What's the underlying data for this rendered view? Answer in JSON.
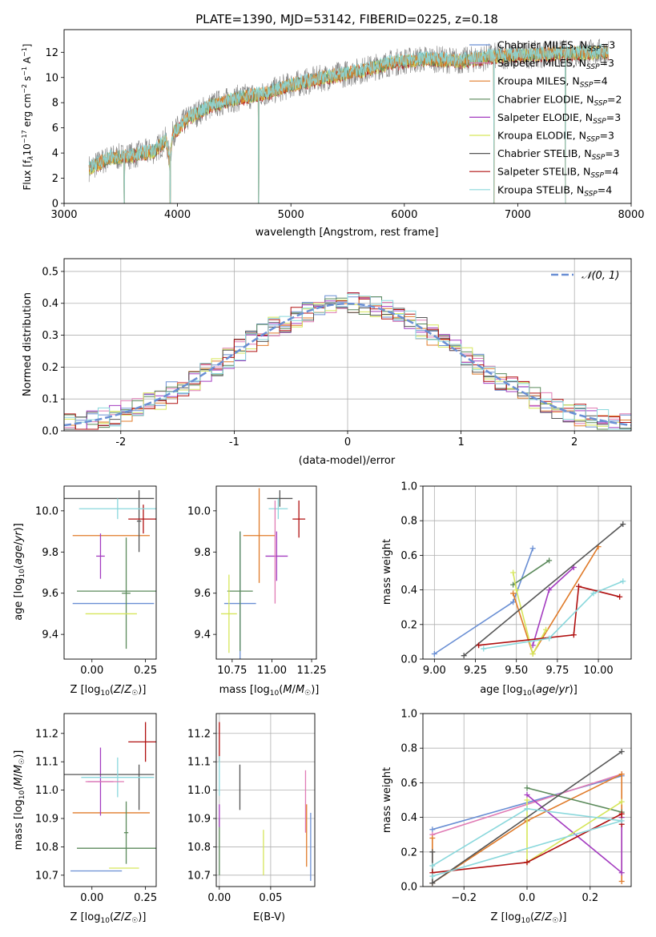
{
  "colors": {
    "chabrier_miles": "#6a8fd4",
    "salpeter_miles": "#e07bb5",
    "kroupa_miles": "#e07b2a",
    "chabrier_elodie": "#5b8a5b",
    "salpeter_elodie": "#a43cc0",
    "kroupa_elodie": "#d6e65a",
    "chabrier_stelib": "#555555",
    "salpeter_stelib": "#b01010",
    "kroupa_stelib": "#8ad8dc",
    "spectrum": "#808080"
  },
  "chart_data": [
    {
      "id": "spectrum",
      "type": "line",
      "title": "PLATE=1390, MJD=53142, FIBERID=0225, z=0.18",
      "xlabel": "wavelength [Angstrom, rest frame]",
      "ylabel_parts": [
        "Flux [f",
        "λ",
        "10",
        "−17",
        " erg cm",
        "−2",
        " s",
        "−1",
        " A",
        "−1",
        "]"
      ],
      "xlim": [
        3000,
        8000
      ],
      "ylim": [
        0,
        13.8
      ],
      "xticks": [
        3000,
        4000,
        5000,
        6000,
        7000,
        8000
      ],
      "yticks": [
        0,
        2,
        4,
        6,
        8,
        10,
        12
      ],
      "legend_position": "right",
      "legend": [
        {
          "name": "Chabrier MILES, N",
          "sub": "SSP",
          "suffix": "=3",
          "color": "chabrier_miles"
        },
        {
          "name": "Salpeter MILES, N",
          "sub": "SSP",
          "suffix": "=3",
          "color": "salpeter_miles"
        },
        {
          "name": "Kroupa MILES, N",
          "sub": "SSP",
          "suffix": "=4",
          "color": "kroupa_miles"
        },
        {
          "name": "Chabrier ELODIE, N",
          "sub": "SSP",
          "suffix": "=2",
          "color": "chabrier_elodie"
        },
        {
          "name": "Salpeter ELODIE, N",
          "sub": "SSP",
          "suffix": "=3",
          "color": "salpeter_elodie"
        },
        {
          "name": "Kroupa ELODIE, N",
          "sub": "SSP",
          "suffix": "=3",
          "color": "kroupa_elodie"
        },
        {
          "name": "Chabrier STELIB, N",
          "sub": "SSP",
          "suffix": "=3",
          "color": "chabrier_stelib"
        },
        {
          "name": "Salpeter STELIB, N",
          "sub": "SSP",
          "suffix": "=4",
          "color": "salpeter_stelib"
        },
        {
          "name": "Kroupa STELIB, N",
          "sub": "SSP",
          "suffix": "=4",
          "color": "kroupa_stelib"
        }
      ],
      "continuum": {
        "x": [
          3220,
          3400,
          3600,
          3800,
          3950,
          4100,
          4300,
          4500,
          4800,
          5000,
          5300,
          5600,
          5900,
          6200,
          6500,
          6800,
          7100,
          7400,
          7700,
          7800
        ],
        "y": [
          2.8,
          3.6,
          3.8,
          4.2,
          5.5,
          6.8,
          7.8,
          8.3,
          8.8,
          9.4,
          10.0,
          10.5,
          11.2,
          11.5,
          11.3,
          11.7,
          11.8,
          11.9,
          12.0,
          12.0
        ]
      },
      "spikes_down": [
        {
          "x": 3530,
          "y": 0
        },
        {
          "x": 3935,
          "y": 0
        },
        {
          "x": 4715,
          "y": 0
        },
        {
          "x": 6790,
          "y": 0
        },
        {
          "x": 7420,
          "y": 0
        }
      ]
    },
    {
      "id": "residuals",
      "type": "histogram",
      "xlabel": "(data-model)/error",
      "ylabel": "Normed distribution",
      "xlim": [
        -2.5,
        2.5
      ],
      "ylim": [
        0,
        0.54
      ],
      "xticks": [
        -2,
        -1,
        0,
        1,
        2
      ],
      "yticks": [
        0.0,
        0.1,
        0.2,
        0.3,
        0.4,
        0.5
      ],
      "grid": true,
      "bin_width": 0.1,
      "legend": [
        {
          "name": "𝒩(0, 1)",
          "color": "chabrier_miles",
          "style": "dashed"
        }
      ],
      "curve": "normal(0,1)"
    },
    {
      "id": "age_vs_Z",
      "type": "errorbar",
      "xlabel": "Z [log₁₀(Z/Z☉)]",
      "ylabel": "age  [log₁₀(age/yr)]",
      "xlim": [
        -0.13,
        0.3
      ],
      "ylim": [
        9.28,
        10.12
      ],
      "xticks": [
        0.0,
        0.25
      ],
      "xtick_labels": [
        "0.00",
        "0.25"
      ],
      "yticks": [
        9.4,
        9.6,
        9.8,
        10.0
      ],
      "points": [
        {
          "series": "chabrier_miles",
          "x": 0.1,
          "xerr": 0.19,
          "y": 9.55,
          "yerr": 0.0
        },
        {
          "series": "salpeter_miles",
          "x": 0.17,
          "xerr": 0.0,
          "y": 9.55,
          "yerr": 0.0
        },
        {
          "series": "kroupa_miles",
          "x": 0.09,
          "xerr": 0.18,
          "y": 9.88,
          "yerr": 0.0
        },
        {
          "series": "chabrier_elodie",
          "x": 0.16,
          "xerr": 0.02,
          "y": 9.6,
          "yerr": 0.27
        },
        {
          "series": "chabrier_elodie",
          "x": 0.17,
          "xerr": 0.24,
          "y": 9.61,
          "yerr": 0.0
        },
        {
          "series": "salpeter_elodie",
          "x": 0.04,
          "xerr": 0.02,
          "y": 9.78,
          "yerr": 0.11
        },
        {
          "series": "kroupa_elodie",
          "x": 0.09,
          "xerr": 0.12,
          "y": 9.5,
          "yerr": 0.0
        },
        {
          "series": "chabrier_stelib",
          "x": 0.07,
          "xerr": 0.22,
          "y": 10.06,
          "yerr": 0.0
        },
        {
          "series": "chabrier_stelib",
          "x": 0.22,
          "xerr": 0.01,
          "y": 9.95,
          "yerr": 0.15
        },
        {
          "series": "salpeter_stelib",
          "x": 0.24,
          "xerr": 0.07,
          "y": 9.96,
          "yerr": 0.07
        },
        {
          "series": "kroupa_stelib",
          "x": 0.12,
          "xerr": 0.18,
          "y": 10.01,
          "yerr": 0.05
        },
        {
          "series": "kroupa_elodie",
          "x": 0.15,
          "xerr": 0.0,
          "y": 9.5,
          "yerr": 0.0
        }
      ]
    },
    {
      "id": "age_vs_mass",
      "type": "errorbar",
      "xlabel": "mass [log₁₀(M/M☉)]",
      "xlim": [
        10.65,
        11.28
      ],
      "ylim": [
        9.28,
        10.12
      ],
      "xticks": [
        10.75,
        11.0,
        11.25
      ],
      "xtick_labels": [
        "10.75",
        "11.00",
        "11.25"
      ],
      "yticks": [
        9.4,
        9.6,
        9.8,
        10.0
      ],
      "points": [
        {
          "series": "chabrier_miles",
          "x": 10.8,
          "xerr": 0.1,
          "y": 9.55,
          "yerr": 0.35
        },
        {
          "series": "kroupa_miles",
          "x": 10.92,
          "xerr": 0.1,
          "y": 9.88,
          "yerr": 0.23
        },
        {
          "series": "chabrier_elodie",
          "x": 10.8,
          "xerr": 0.08,
          "y": 9.61,
          "yerr": 0.29
        },
        {
          "series": "salpeter_elodie",
          "x": 11.03,
          "xerr": 0.07,
          "y": 9.78,
          "yerr": 0.12
        },
        {
          "series": "kroupa_elodie",
          "x": 10.73,
          "xerr": 0.05,
          "y": 9.5,
          "yerr": 0.19
        },
        {
          "series": "chabrier_stelib",
          "x": 11.05,
          "xerr": 0.08,
          "y": 10.06,
          "yerr": 0.04
        },
        {
          "series": "salpeter_stelib",
          "x": 11.17,
          "xerr": 0.04,
          "y": 9.96,
          "yerr": 0.09
        },
        {
          "series": "kroupa_stelib",
          "x": 11.04,
          "xerr": 0.06,
          "y": 10.01,
          "yerr": 0.05
        },
        {
          "series": "salpeter_miles",
          "x": 11.02,
          "xerr": 0.0,
          "y": 9.8,
          "yerr": 0.25
        }
      ]
    },
    {
      "id": "weight_vs_age",
      "type": "line",
      "xlabel": "age  [log₁₀(age/yr)]",
      "ylabel": "mass weight",
      "xlim": [
        8.93,
        10.2
      ],
      "ylim": [
        0,
        1.0
      ],
      "xticks": [
        9.0,
        9.25,
        9.5,
        9.75,
        10.0
      ],
      "xtick_labels": [
        "9.00",
        "9.25",
        "9.50",
        "9.75",
        "10.00"
      ],
      "yticks": [
        0.0,
        0.2,
        0.4,
        0.6,
        0.8,
        1.0
      ],
      "grid": true,
      "series": [
        {
          "color": "chabrier_miles",
          "x": [
            9.0,
            9.48,
            9.6
          ],
          "y": [
            0.03,
            0.33,
            0.64
          ]
        },
        {
          "color": "kroupa_miles",
          "x": [
            9.48,
            9.6,
            10.0
          ],
          "y": [
            0.38,
            0.03,
            0.65
          ]
        },
        {
          "color": "chabrier_elodie",
          "x": [
            9.48,
            9.7
          ],
          "y": [
            0.43,
            0.57
          ]
        },
        {
          "color": "salpeter_elodie",
          "x": [
            9.6,
            9.7,
            9.85
          ],
          "y": [
            0.08,
            0.4,
            0.53
          ]
        },
        {
          "color": "kroupa_elodie",
          "x": [
            9.48,
            9.5,
            9.6,
            9.68
          ],
          "y": [
            0.5,
            0.4,
            0.03,
            0.17
          ]
        },
        {
          "color": "chabrier_stelib",
          "x": [
            9.18,
            10.15
          ],
          "y": [
            0.02,
            0.78
          ]
        },
        {
          "color": "salpeter_stelib",
          "x": [
            9.27,
            9.85,
            9.88,
            10.13
          ],
          "y": [
            0.08,
            0.14,
            0.42,
            0.36
          ]
        },
        {
          "color": "kroupa_stelib",
          "x": [
            9.3,
            9.7,
            9.97,
            10.15
          ],
          "y": [
            0.06,
            0.12,
            0.38,
            0.45
          ]
        }
      ]
    },
    {
      "id": "mass_vs_Z",
      "type": "errorbar",
      "xlabel": "Z [log₁₀(Z/Z☉)]",
      "ylabel": "mass [log₁₀(M/M☉)]",
      "xlim": [
        -0.13,
        0.3
      ],
      "ylim": [
        10.66,
        11.27
      ],
      "xticks": [
        0.0,
        0.25
      ],
      "xtick_labels": [
        "0.00",
        "0.25"
      ],
      "yticks": [
        10.7,
        10.8,
        10.9,
        11.0,
        11.1,
        11.2
      ],
      "points": [
        {
          "series": "chabrier_miles",
          "x": 0.02,
          "xerr": 0.12,
          "y": 10.715,
          "yerr": 0.0
        },
        {
          "series": "kroupa_miles",
          "x": 0.09,
          "xerr": 0.18,
          "y": 10.92,
          "yerr": 0.0
        },
        {
          "series": "chabrier_elodie",
          "x": 0.17,
          "xerr": 0.24,
          "y": 10.795,
          "yerr": 0.0
        },
        {
          "series": "chabrier_elodie",
          "x": 0.16,
          "xerr": 0.01,
          "y": 10.85,
          "yerr": 0.11
        },
        {
          "series": "salpeter_elodie",
          "x": 0.04,
          "xerr": 0.06,
          "y": 11.03,
          "yerr": 0.12
        },
        {
          "series": "kroupa_elodie",
          "x": 0.15,
          "xerr": 0.07,
          "y": 10.725,
          "yerr": 0.0
        },
        {
          "series": "chabrier_stelib",
          "x": 0.07,
          "xerr": 0.22,
          "y": 11.055,
          "yerr": 0.0
        },
        {
          "series": "chabrier_stelib",
          "x": 0.22,
          "xerr": 0.0,
          "y": 11.01,
          "yerr": 0.08
        },
        {
          "series": "salpeter_stelib",
          "x": 0.25,
          "xerr": 0.08,
          "y": 11.17,
          "yerr": 0.07
        },
        {
          "series": "kroupa_stelib",
          "x": 0.12,
          "xerr": 0.17,
          "y": 11.045,
          "yerr": 0.07
        },
        {
          "series": "salpeter_miles",
          "x": 0.06,
          "xerr": 0.09,
          "y": 11.03,
          "yerr": 0.0
        }
      ]
    },
    {
      "id": "mass_vs_ebv",
      "type": "errorbar",
      "xlabel": "E(B-V)",
      "xlim": [
        -0.003,
        0.093
      ],
      "ylim": [
        10.66,
        11.27
      ],
      "xticks": [
        0.0,
        0.05
      ],
      "xtick_labels": [
        "0.00",
        "0.05"
      ],
      "yticks": [
        10.7,
        10.8,
        10.9,
        11.0,
        11.1,
        11.2
      ],
      "grid": true,
      "points": [
        {
          "series": "salpeter_stelib",
          "x": 0.0,
          "xerr": 0.0,
          "y": 11.17,
          "yerr": 0.07
        },
        {
          "series": "kroupa_stelib",
          "x": 0.0,
          "xerr": 0.0,
          "y": 11.05,
          "yerr": 0.07
        },
        {
          "series": "chabrier_elodie",
          "x": 0.0,
          "xerr": 0.0,
          "y": 10.8,
          "yerr": 0.1
        },
        {
          "series": "salpeter_elodie",
          "x": 0.0,
          "xerr": 0.0,
          "y": 10.91,
          "yerr": 0.04
        },
        {
          "series": "chabrier_stelib",
          "x": 0.02,
          "xerr": 0.0,
          "y": 11.01,
          "yerr": 0.08
        },
        {
          "series": "kroupa_elodie",
          "x": 0.043,
          "xerr": 0.0,
          "y": 10.78,
          "yerr": 0.08
        },
        {
          "series": "salpeter_miles",
          "x": 0.084,
          "xerr": 0.0,
          "y": 10.96,
          "yerr": 0.11
        },
        {
          "series": "kroupa_miles",
          "x": 0.085,
          "xerr": 0.0,
          "y": 10.84,
          "yerr": 0.11
        },
        {
          "series": "chabrier_miles",
          "x": 0.089,
          "xerr": 0.0,
          "y": 10.8,
          "yerr": 0.12
        }
      ]
    },
    {
      "id": "weight_vs_Z",
      "type": "line",
      "xlabel": "Z [log₁₀(Z/Z☉)]",
      "ylabel": "mass weight",
      "xlim": [
        -0.33,
        0.33
      ],
      "ylim": [
        0,
        1.0
      ],
      "xticks": [
        -0.2,
        0.0,
        0.2
      ],
      "xtick_labels": [
        "−0.2",
        "0.0",
        "0.2"
      ],
      "yticks": [
        0.0,
        0.2,
        0.4,
        0.6,
        0.8,
        1.0
      ],
      "grid": true,
      "series": [
        {
          "color": "chabrier_miles",
          "x": [
            -0.3,
            0.3
          ],
          "y": [
            0.33,
            0.64
          ]
        },
        {
          "color": "salpeter_miles",
          "x": [
            -0.3,
            0.3
          ],
          "y": [
            0.3,
            0.65
          ]
        },
        {
          "color": "kroupa_miles",
          "x": [
            -0.3,
            -0.3,
            0.0,
            0.3,
            0.3
          ],
          "y": [
            0.28,
            0.02,
            0.38,
            0.65,
            0.03
          ]
        },
        {
          "color": "chabrier_elodie",
          "x": [
            0.0,
            0.3
          ],
          "y": [
            0.57,
            0.43
          ]
        },
        {
          "color": "salpeter_elodie",
          "x": [
            0.0,
            0.3,
            0.3
          ],
          "y": [
            0.53,
            0.08,
            0.4
          ]
        },
        {
          "color": "kroupa_elodie",
          "x": [
            0.0,
            0.0,
            0.3
          ],
          "y": [
            0.5,
            0.14,
            0.49
          ]
        },
        {
          "color": "chabrier_stelib",
          "x": [
            -0.3,
            -0.3,
            0.3
          ],
          "y": [
            0.2,
            0.02,
            0.78
          ]
        },
        {
          "color": "salpeter_stelib",
          "x": [
            -0.3,
            0.0,
            0.3,
            0.3
          ],
          "y": [
            0.08,
            0.14,
            0.42,
            0.36
          ]
        },
        {
          "color": "kroupa_stelib",
          "x": [
            -0.3,
            0.0,
            0.3,
            -0.3
          ],
          "y": [
            0.12,
            0.45,
            0.38,
            0.06
          ]
        }
      ]
    }
  ]
}
